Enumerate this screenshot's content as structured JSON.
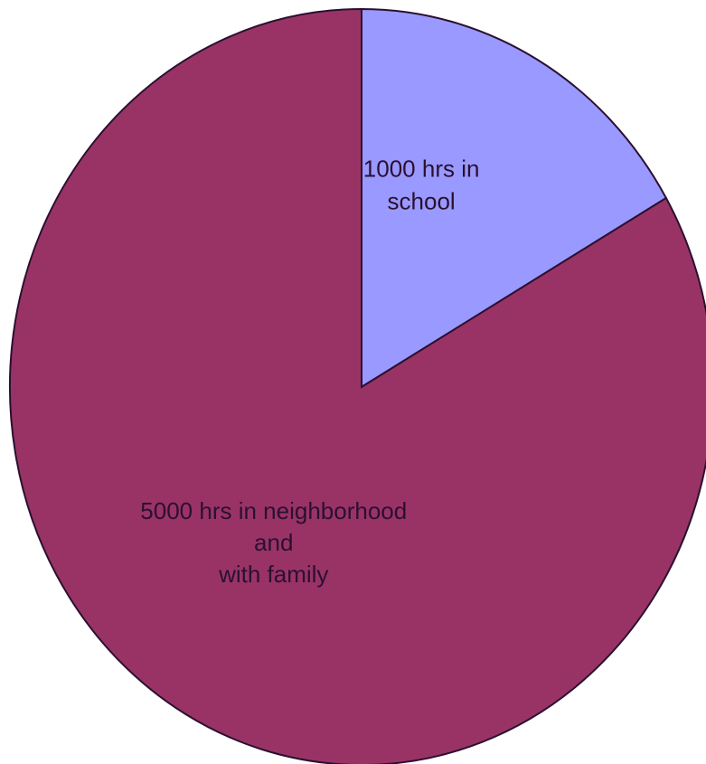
{
  "chart_data": {
    "type": "pie",
    "start_angle_deg": 0,
    "direction": "clockwise",
    "slices": [
      {
        "label": [
          "1000 hrs in",
          "school"
        ],
        "value": 1000,
        "color": "#9999ff"
      },
      {
        "label": [
          "5000 hrs in neighborhood",
          "and",
          "with family"
        ],
        "value": 5000,
        "color": "#993366"
      }
    ],
    "grid": false,
    "legend": "none"
  }
}
